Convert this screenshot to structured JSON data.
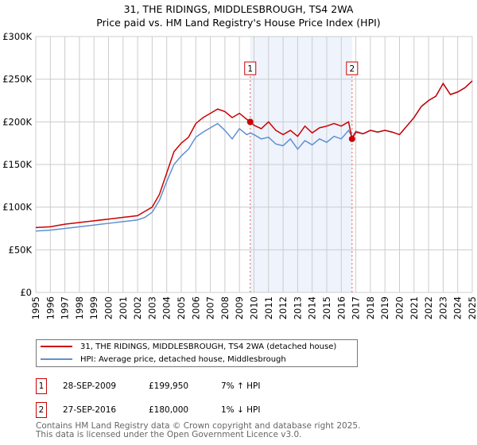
{
  "title_line1": "31, THE RIDINGS, MIDDLESBROUGH, TS4 2WA",
  "title_line2": "Price paid vs. HM Land Registry's House Price Index (HPI)",
  "chart_data": {
    "type": "line",
    "xlim": [
      1995,
      2025
    ],
    "ylim": [
      0,
      300000
    ],
    "yticks": [
      0,
      50000,
      100000,
      150000,
      200000,
      250000,
      300000
    ],
    "ytick_labels": [
      "£0",
      "£50K",
      "£100K",
      "£150K",
      "£200K",
      "£250K",
      "£300K"
    ],
    "xtick_labels": [
      "1995",
      "1996",
      "1997",
      "1998",
      "1999",
      "2000",
      "2001",
      "2002",
      "2003",
      "2004",
      "2005",
      "2006",
      "2007",
      "2008",
      "2009",
      "2010",
      "2011",
      "2012",
      "2013",
      "2014",
      "2015",
      "2016",
      "2017",
      "2018",
      "2019",
      "2020",
      "2021",
      "2022",
      "2023",
      "2024",
      "2025"
    ],
    "shaded_region": [
      2009.74,
      2016.74
    ],
    "series": [
      {
        "name": "31, THE RIDINGS, MIDDLESBROUGH, TS4 2WA (detached house)",
        "color": "#cc0000",
        "x": [
          1995,
          1996,
          1997,
          1998,
          1999,
          2000,
          2001,
          2002,
          2002.5,
          2003,
          2003.5,
          2004,
          2004.5,
          2005,
          2005.5,
          2006,
          2006.5,
          2007,
          2007.5,
          2008,
          2008.5,
          2009,
          2009.5,
          2009.75,
          2010,
          2010.5,
          2011,
          2011.5,
          2012,
          2012.5,
          2013,
          2013.5,
          2014,
          2014.5,
          2015,
          2015.5,
          2016,
          2016.5,
          2016.74,
          2017,
          2017.5,
          2018,
          2018.5,
          2019,
          2019.5,
          2020,
          2020.5,
          2021,
          2021.5,
          2022,
          2022.5,
          2023,
          2023.5,
          2024,
          2024.5,
          2025
        ],
        "y": [
          76000,
          77000,
          80000,
          82000,
          84000,
          86000,
          88000,
          90000,
          95000,
          100000,
          115000,
          140000,
          165000,
          175000,
          182000,
          198000,
          205000,
          210000,
          215000,
          212000,
          205000,
          210000,
          203000,
          199950,
          196000,
          192000,
          200000,
          190000,
          185000,
          190000,
          183000,
          195000,
          187000,
          193000,
          195000,
          198000,
          195000,
          200000,
          180000,
          188000,
          186000,
          190000,
          188000,
          190000,
          188000,
          185000,
          195000,
          205000,
          218000,
          225000,
          230000,
          245000,
          232000,
          235000,
          240000,
          248000
        ]
      },
      {
        "name": "HPI: Average price, detached house, Middlesbrough",
        "color": "#6090d0",
        "x": [
          1995,
          1996,
          1997,
          1998,
          1999,
          2000,
          2001,
          2002,
          2002.5,
          2003,
          2003.5,
          2004,
          2004.5,
          2005,
          2005.5,
          2006,
          2006.5,
          2007,
          2007.5,
          2008,
          2008.5,
          2009,
          2009.5,
          2009.75,
          2010,
          2010.5,
          2011,
          2011.5,
          2012,
          2012.5,
          2013,
          2013.5,
          2014,
          2014.5,
          2015,
          2015.5,
          2016,
          2016.5,
          2016.74,
          2017,
          2017.5,
          2018,
          2018.5,
          2019,
          2019.5,
          2020,
          2020.5,
          2021,
          2021.5,
          2022,
          2022.5,
          2023,
          2023.5,
          2024,
          2024.5,
          2025
        ],
        "y": [
          72000,
          73000,
          75000,
          77000,
          79000,
          81000,
          83000,
          85000,
          88000,
          94000,
          108000,
          130000,
          150000,
          160000,
          168000,
          182000,
          188000,
          193000,
          198000,
          190000,
          180000,
          192000,
          185000,
          187000,
          185000,
          180000,
          182000,
          174000,
          172000,
          180000,
          168000,
          178000,
          173000,
          180000,
          176000,
          183000,
          180000,
          190000,
          182000,
          189000,
          186000,
          190000,
          188000,
          190000,
          188000,
          185000,
          195000,
          205000,
          218000,
          225000,
          230000,
          245000,
          232000,
          235000,
          240000,
          248000
        ]
      }
    ],
    "annotations": [
      {
        "label": "1",
        "x": 2009.74,
        "y": 199950
      },
      {
        "label": "2",
        "x": 2016.74,
        "y": 180000
      }
    ]
  },
  "legend": [
    {
      "label": "31, THE RIDINGS, MIDDLESBROUGH, TS4 2WA (detached house)",
      "color": "#cc0000"
    },
    {
      "label": "HPI: Average price, detached house, Middlesbrough",
      "color": "#6090d0"
    }
  ],
  "transactions": [
    {
      "num": "1",
      "date": "28-SEP-2009",
      "price": "£199,950",
      "hpi": "7% ↑ HPI"
    },
    {
      "num": "2",
      "date": "27-SEP-2016",
      "price": "£180,000",
      "hpi": "1% ↓ HPI"
    }
  ],
  "footer_line1": "Contains HM Land Registry data © Crown copyright and database right 2025.",
  "footer_line2": "This data is licensed under the Open Government Licence v3.0."
}
